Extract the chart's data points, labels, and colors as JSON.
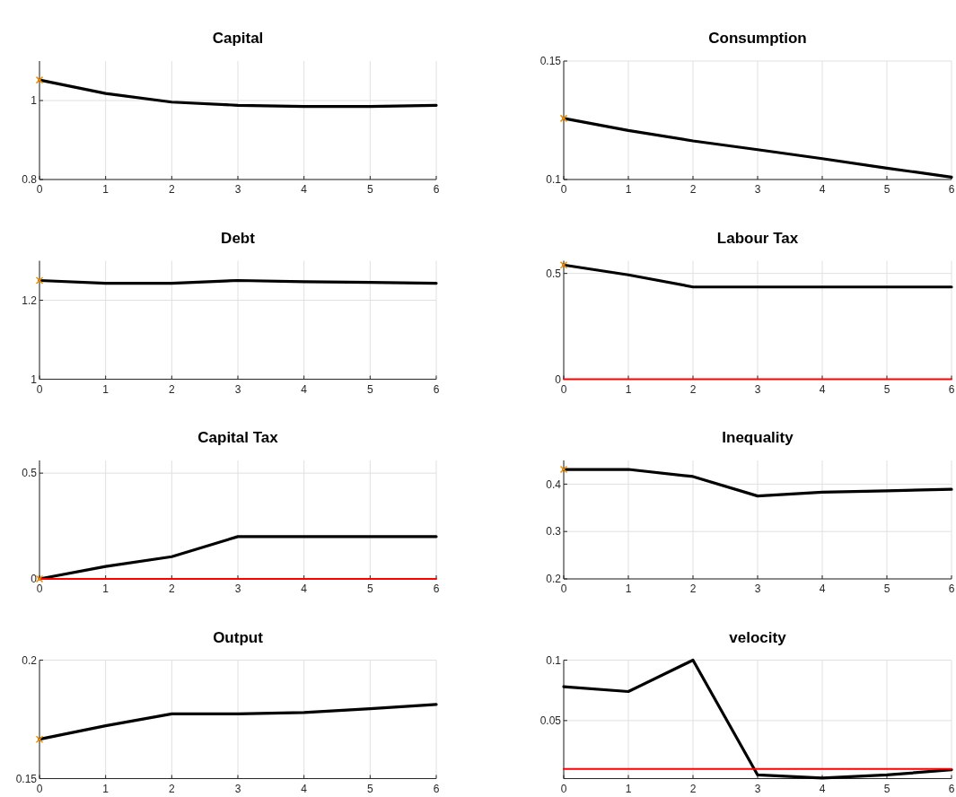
{
  "chart_data": [
    {
      "type": "line",
      "title": "Capital",
      "x": [
        0,
        1,
        2,
        3,
        4,
        5,
        6
      ],
      "xlim": [
        0,
        6
      ],
      "xticks": [
        0,
        1,
        2,
        3,
        4,
        5,
        6
      ],
      "ylim": [
        0.8,
        1.1
      ],
      "yticks": [
        0.8,
        1
      ],
      "grid": true,
      "series": [
        {
          "color": "#000000",
          "values": [
            1.052,
            1.018,
            0.996,
            0.988,
            0.985,
            0.985,
            0.988
          ]
        },
        {
          "type": "scatter",
          "marker": "cross",
          "color": "#f08c00",
          "values": [
            1.052,
            null,
            null,
            null,
            null,
            null,
            null
          ]
        }
      ]
    },
    {
      "type": "line",
      "title": "Consumption",
      "x": [
        0,
        1,
        2,
        3,
        4,
        5,
        6
      ],
      "xlim": [
        0,
        6
      ],
      "xticks": [
        0,
        1,
        2,
        3,
        4,
        5,
        6
      ],
      "ylim": [
        0.1,
        0.15
      ],
      "yticks": [
        0.1,
        0.15
      ],
      "grid": true,
      "series": [
        {
          "color": "#000000",
          "values": [
            0.1258,
            0.1207,
            0.1163,
            0.1126,
            0.1088,
            0.1048,
            0.101
          ]
        },
        {
          "type": "scatter",
          "marker": "cross",
          "color": "#f08c00",
          "values": [
            0.1258,
            null,
            null,
            null,
            null,
            null,
            null
          ]
        }
      ]
    },
    {
      "type": "line",
      "title": "Debt",
      "x": [
        0,
        1,
        2,
        3,
        4,
        5,
        6
      ],
      "xlim": [
        0,
        6
      ],
      "xticks": [
        0,
        1,
        2,
        3,
        4,
        5,
        6
      ],
      "ylim": [
        1,
        1.3
      ],
      "yticks": [
        1,
        1.2
      ],
      "grid": true,
      "series": [
        {
          "color": "#000000",
          "values": [
            1.25,
            1.243,
            1.243,
            1.25,
            1.247,
            1.245,
            1.243
          ]
        },
        {
          "type": "scatter",
          "marker": "cross",
          "color": "#f08c00",
          "values": [
            1.25,
            null,
            null,
            null,
            null,
            null,
            null
          ]
        }
      ]
    },
    {
      "type": "line",
      "title": "Labour Tax",
      "x": [
        0,
        1,
        2,
        3,
        4,
        5,
        6
      ],
      "xlim": [
        0,
        6
      ],
      "xticks": [
        0,
        1,
        2,
        3,
        4,
        5,
        6
      ],
      "ylim": [
        0,
        0.56
      ],
      "yticks": [
        0,
        0.5
      ],
      "grid": true,
      "series": [
        {
          "color": "#000000",
          "values": [
            0.54,
            0.493,
            0.436,
            0.436,
            0.436,
            0.436,
            0.436
          ]
        },
        {
          "color": "#ff0000",
          "values": [
            0,
            0,
            0,
            0,
            0,
            0,
            0
          ]
        },
        {
          "type": "scatter",
          "marker": "cross",
          "color": "#f08c00",
          "values": [
            0.54,
            null,
            null,
            null,
            null,
            null,
            null
          ]
        }
      ]
    },
    {
      "type": "line",
      "title": "Capital Tax",
      "x": [
        0,
        1,
        2,
        3,
        4,
        5,
        6
      ],
      "xlim": [
        0,
        6
      ],
      "xticks": [
        0,
        1,
        2,
        3,
        4,
        5,
        6
      ],
      "ylim": [
        0,
        0.56
      ],
      "yticks": [
        0,
        0.5
      ],
      "grid": true,
      "series": [
        {
          "color": "#000000",
          "values": [
            0,
            0.059,
            0.105,
            0.2,
            0.2,
            0.2,
            0.2
          ]
        },
        {
          "color": "#ff0000",
          "values": [
            0,
            0,
            0,
            0,
            0,
            0,
            0
          ]
        },
        {
          "type": "scatter",
          "marker": "cross",
          "color": "#f08c00",
          "values": [
            0,
            null,
            null,
            null,
            null,
            null,
            null
          ]
        }
      ]
    },
    {
      "type": "line",
      "title": "Inequality",
      "x": [
        0,
        1,
        2,
        3,
        4,
        5,
        6
      ],
      "xlim": [
        0,
        6
      ],
      "xticks": [
        0,
        1,
        2,
        3,
        4,
        5,
        6
      ],
      "ylim": [
        0.2,
        0.45
      ],
      "yticks": [
        0.2,
        0.3,
        0.4
      ],
      "grid": true,
      "series": [
        {
          "color": "#000000",
          "values": [
            0.431,
            0.431,
            0.416,
            0.375,
            0.383,
            0.386,
            0.389
          ]
        },
        {
          "type": "scatter",
          "marker": "cross",
          "color": "#f08c00",
          "values": [
            0.431,
            null,
            null,
            null,
            null,
            null,
            null
          ]
        }
      ]
    },
    {
      "type": "line",
      "title": "Output",
      "x": [
        0,
        1,
        2,
        3,
        4,
        5,
        6
      ],
      "xlim": [
        0,
        6
      ],
      "xticks": [
        0,
        1,
        2,
        3,
        4,
        5,
        6
      ],
      "ylim": [
        0.15,
        0.2
      ],
      "yticks": [
        0.15,
        0.2
      ],
      "grid": true,
      "series": [
        {
          "color": "#000000",
          "values": [
            0.1666,
            0.1723,
            0.1773,
            0.1773,
            0.1779,
            0.1795,
            0.1813
          ]
        },
        {
          "type": "scatter",
          "marker": "cross",
          "color": "#f08c00",
          "values": [
            0.1666,
            null,
            null,
            null,
            null,
            null,
            null
          ]
        }
      ]
    },
    {
      "type": "line",
      "title": "velocity",
      "x": [
        0,
        1,
        2,
        3,
        4,
        5,
        6
      ],
      "xlim": [
        0,
        6
      ],
      "xticks": [
        0,
        1,
        2,
        3,
        4,
        5,
        6
      ],
      "ylim": [
        0.002,
        0.1
      ],
      "yticks": [
        0.05,
        0.1
      ],
      "grid": true,
      "series": [
        {
          "color": "#000000",
          "values": [
            0.078,
            0.074,
            0.1,
            0.005,
            0.0025,
            0.005,
            0.0093
          ]
        },
        {
          "color": "#ff0000",
          "values": [
            0.01,
            0.01,
            0.01,
            0.01,
            0.01,
            0.01,
            0.01
          ]
        }
      ]
    }
  ]
}
